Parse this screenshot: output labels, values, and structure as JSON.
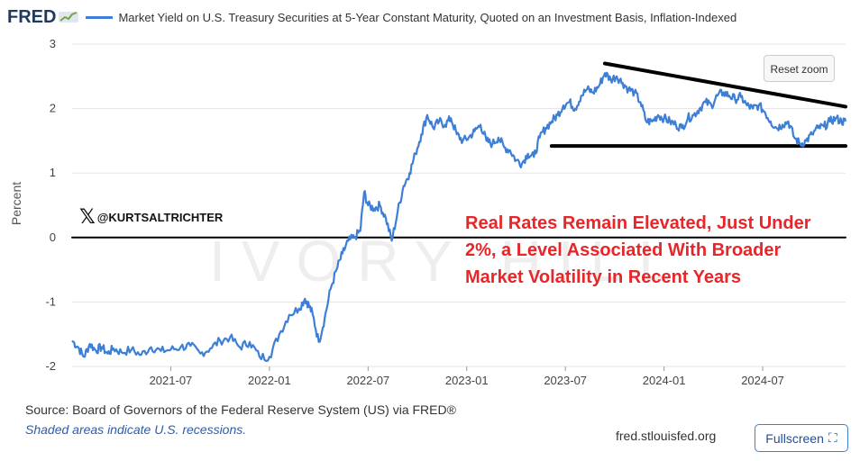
{
  "header": {
    "logo_text": "FRED",
    "legend_label": "Market Yield on U.S. Treasury Securities at 5-Year Constant Maturity, Quoted on an Investment Basis, Inflation-Indexed"
  },
  "controls": {
    "reset_zoom_label": "Reset zoom",
    "fullscreen_label": "Fullscreen"
  },
  "watermark": {
    "handle": "@KURTSALTRICHTER",
    "background_logo_text": "IVORY HILL"
  },
  "annotation": {
    "text": "Real Rates Remain Elevated, Just Under 2%, a Level Associated With Broader Market Volatility in Recent Years"
  },
  "footer": {
    "source": "Source: Board of Governors of the Federal Reserve System (US) via FRED®",
    "recession_note": "Shaded areas indicate U.S. recessions.",
    "site": "fred.stlouisfed.org"
  },
  "colors": {
    "series": "#3d7fd6",
    "annotation": "#e8262a",
    "grid": "#e3e3e3",
    "zero_line": "#000000",
    "trend_lines": "#000000"
  },
  "chart_data": {
    "type": "line",
    "title": "Market Yield on U.S. Treasury Securities at 5-Year Constant Maturity, Quoted on an Investment Basis, Inflation-Indexed",
    "xlabel": "",
    "ylabel": "Percent",
    "ylim": [
      -2,
      3
    ],
    "yticks": [
      -2,
      -1,
      0,
      1,
      2,
      3
    ],
    "ytick_labels": [
      "-2",
      "-1",
      "0",
      "1",
      "2",
      "3"
    ],
    "xlim": [
      2021.0,
      2024.92
    ],
    "xticks": [
      2021.5,
      2022.0,
      2022.5,
      2023.0,
      2023.5,
      2024.0,
      2024.5
    ],
    "xtick_labels": [
      "2021-07",
      "2022-01",
      "2022-07",
      "2023-01",
      "2023-07",
      "2024-01",
      "2024-07"
    ],
    "grid": true,
    "series": [
      {
        "name": "Market Yield on U.S. Treasury Securities at 5-Year Constant Maturity, Quoted on an Investment Basis, Inflation-Indexed",
        "x": [
          2021.0,
          2021.03,
          2021.06,
          2021.09,
          2021.12,
          2021.15,
          2021.18,
          2021.21,
          2021.25,
          2021.3,
          2021.35,
          2021.4,
          2021.45,
          2021.5,
          2021.55,
          2021.6,
          2021.65,
          2021.7,
          2021.75,
          2021.8,
          2021.85,
          2021.9,
          2021.95,
          2022.0,
          2022.05,
          2022.1,
          2022.15,
          2022.18,
          2022.2,
          2022.22,
          2022.25,
          2022.28,
          2022.31,
          2022.34,
          2022.37,
          2022.4,
          2022.43,
          2022.46,
          2022.48,
          2022.5,
          2022.53,
          2022.56,
          2022.59,
          2022.62,
          2022.65,
          2022.68,
          2022.71,
          2022.74,
          2022.77,
          2022.8,
          2022.83,
          2022.86,
          2022.89,
          2022.92,
          2022.95,
          2022.98,
          2023.01,
          2023.04,
          2023.07,
          2023.1,
          2023.13,
          2023.16,
          2023.19,
          2023.22,
          2023.25,
          2023.28,
          2023.31,
          2023.34,
          2023.37,
          2023.4,
          2023.43,
          2023.46,
          2023.49,
          2023.52,
          2023.55,
          2023.58,
          2023.61,
          2023.64,
          2023.67,
          2023.7,
          2023.73,
          2023.76,
          2023.79,
          2023.82,
          2023.85,
          2023.88,
          2023.91,
          2023.94,
          2023.97,
          2024.0,
          2024.03,
          2024.06,
          2024.09,
          2024.12,
          2024.15,
          2024.18,
          2024.21,
          2024.24,
          2024.27,
          2024.3,
          2024.33,
          2024.36,
          2024.39,
          2024.42,
          2024.45,
          2024.48,
          2024.51,
          2024.54,
          2024.57,
          2024.6,
          2024.63,
          2024.66,
          2024.69,
          2024.72,
          2024.75,
          2024.78,
          2024.81,
          2024.84,
          2024.87,
          2024.9,
          2024.92
        ],
        "values": [
          -1.6,
          -1.7,
          -1.85,
          -1.65,
          -1.75,
          -1.7,
          -1.8,
          -1.72,
          -1.78,
          -1.74,
          -1.82,
          -1.7,
          -1.76,
          -1.74,
          -1.7,
          -1.68,
          -1.8,
          -1.72,
          -1.6,
          -1.55,
          -1.7,
          -1.62,
          -1.85,
          -1.85,
          -1.5,
          -1.2,
          -1.1,
          -0.95,
          -1.05,
          -1.2,
          -1.62,
          -1.25,
          -0.8,
          -0.5,
          -0.25,
          -0.05,
          0.0,
          0.1,
          0.7,
          0.5,
          0.45,
          0.5,
          0.3,
          -0.05,
          0.4,
          0.8,
          1.0,
          1.3,
          1.6,
          1.9,
          1.7,
          1.8,
          1.75,
          1.85,
          1.6,
          1.5,
          1.55,
          1.65,
          1.75,
          1.5,
          1.45,
          1.55,
          1.4,
          1.35,
          1.2,
          1.15,
          1.3,
          1.25,
          1.55,
          1.7,
          1.8,
          1.9,
          2.05,
          2.1,
          2.0,
          2.2,
          2.3,
          2.25,
          2.35,
          2.55,
          2.45,
          2.5,
          2.4,
          2.3,
          2.25,
          2.1,
          1.8,
          1.8,
          1.9,
          1.85,
          1.8,
          1.75,
          1.7,
          1.85,
          1.9,
          2.0,
          2.1,
          2.05,
          2.2,
          2.25,
          2.2,
          2.15,
          2.18,
          2.05,
          2.0,
          2.05,
          1.95,
          1.8,
          1.7,
          1.75,
          1.8,
          1.55,
          1.45,
          1.5,
          1.6,
          1.7,
          1.72,
          1.8,
          1.85,
          1.8,
          1.8
        ]
      }
    ],
    "reference_lines": [
      {
        "name": "zero-line",
        "x": [
          2021.0,
          2024.92
        ],
        "y": [
          0,
          0
        ]
      },
      {
        "name": "support-line",
        "x": [
          2023.43,
          2024.92
        ],
        "y": [
          1.42,
          1.42
        ]
      },
      {
        "name": "resistance-trendline",
        "x": [
          2023.7,
          2024.92
        ],
        "y": [
          2.7,
          2.03
        ]
      }
    ]
  }
}
